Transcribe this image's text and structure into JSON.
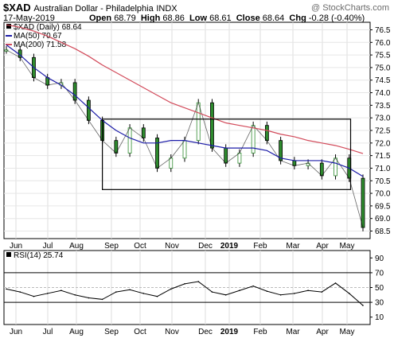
{
  "header": {
    "symbol": "$XAD",
    "description": "Australian Dollar - Philadelphia",
    "exchange": "INDX",
    "watermark": "@ StockCharts.com",
    "date": "17-May-2019",
    "open_label": "Open",
    "open": "68.79",
    "high_label": "High",
    "high": "68.86",
    "low_label": "Low",
    "low": "68.61",
    "close_label": "Close",
    "close": "68.64",
    "chg_label": "Chg",
    "chg": "-0.28 (-0.40%)"
  },
  "colors": {
    "price": "#2e8b2e",
    "ma50": "#1c1ca8",
    "ma200": "#d24a5a",
    "rsi": "#000000",
    "box": "#000000"
  },
  "chart_data": [
    {
      "type": "line",
      "legend": [
        {
          "label": "$XAD (Daily) 68.64",
          "marker": "square",
          "color": "#000000"
        },
        {
          "label": "MA(50) 70.67",
          "color": "#1c1ca8"
        },
        {
          "label": "MA(200) 71.58",
          "color": "#d24a5a"
        }
      ],
      "ylim": [
        68.2,
        76.8
      ],
      "y_ticks": [
        "76.5",
        "76.0",
        "75.5",
        "75.0",
        "74.5",
        "74.0",
        "73.5",
        "73.0",
        "72.5",
        "72.0",
        "71.5",
        "71.0",
        "70.5",
        "70.0",
        "69.5",
        "69.0",
        "68.5"
      ],
      "x_labels": [
        "Jun",
        "Jul",
        "Aug",
        "Sep",
        "Oct",
        "Nov",
        "Dec",
        "2019",
        "Feb",
        "Mar",
        "Apr",
        "May"
      ],
      "grid": true,
      "x": [
        0,
        10,
        20,
        30,
        40,
        50,
        60,
        70,
        80,
        90,
        100,
        110,
        120,
        130,
        140,
        150,
        160,
        170,
        180,
        190,
        200,
        210,
        220,
        230,
        240,
        250,
        260
      ],
      "series": [
        {
          "name": "$XAD (Daily)",
          "values": [
            75.7,
            75.4,
            74.6,
            74.3,
            74.4,
            73.7,
            72.9,
            72.1,
            71.6,
            72.6,
            72.2,
            71.0,
            71.4,
            72.1,
            73.6,
            71.8,
            71.2,
            71.6,
            72.7,
            72.1,
            71.3,
            71.1,
            71.2,
            70.7,
            71.4,
            70.6,
            68.64
          ]
        },
        {
          "name": "MA(50)",
          "values": [
            75.9,
            75.5,
            75.0,
            74.6,
            74.3,
            73.9,
            73.4,
            72.9,
            72.5,
            72.2,
            72.0,
            72.0,
            72.1,
            72.1,
            72.0,
            71.9,
            71.8,
            71.8,
            71.8,
            71.7,
            71.4,
            71.3,
            71.3,
            71.3,
            71.2,
            71.0,
            70.67
          ]
        },
        {
          "name": "MA(200)",
          "values": [
            76.7,
            76.6,
            76.45,
            76.25,
            76.0,
            75.75,
            75.45,
            75.1,
            74.8,
            74.5,
            74.2,
            73.9,
            73.6,
            73.4,
            73.2,
            73.0,
            72.8,
            72.7,
            72.6,
            72.5,
            72.35,
            72.25,
            72.1,
            72.0,
            71.9,
            71.75,
            71.58
          ]
        }
      ],
      "annotation_box": {
        "x0": 70,
        "x1": 251,
        "y0": 70.15,
        "y1": 72.95
      }
    },
    {
      "type": "line",
      "legend": [
        {
          "label": "RSI(14) 25.74",
          "marker": "square",
          "color": "#000000"
        }
      ],
      "ylim": [
        0,
        100
      ],
      "y_ticks": [
        "90",
        "70",
        "50",
        "30",
        "10"
      ],
      "reference_lines": [
        70,
        50,
        30
      ],
      "x_labels": [
        "Jun",
        "Jul",
        "Aug",
        "Sep",
        "Oct",
        "Nov",
        "Dec",
        "2019",
        "Feb",
        "Mar",
        "Apr",
        "May"
      ],
      "x": [
        0,
        10,
        20,
        30,
        40,
        50,
        60,
        70,
        80,
        90,
        100,
        110,
        120,
        130,
        140,
        150,
        160,
        170,
        180,
        190,
        200,
        210,
        220,
        230,
        240,
        250,
        260
      ],
      "series": [
        {
          "name": "RSI(14)",
          "values": [
            48,
            44,
            38,
            42,
            46,
            40,
            36,
            34,
            44,
            47,
            42,
            38,
            48,
            55,
            58,
            44,
            40,
            46,
            52,
            45,
            40,
            42,
            46,
            44,
            56,
            42,
            25.74
          ]
        }
      ]
    }
  ]
}
